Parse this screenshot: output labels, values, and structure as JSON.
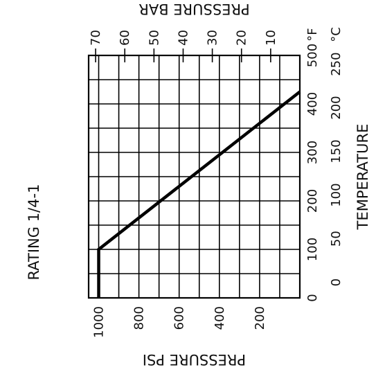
{
  "chart_data": {
    "type": "line",
    "title": "RATING 1/4-1",
    "xlabel": "TEMPERATURE",
    "ylabel": "PRESSURE PSI",
    "ylabel_secondary": "PRESSURE BAR",
    "x_unit_primary": "°F",
    "x_unit_secondary": "°C",
    "x_ticks_f": [
      "0",
      "100",
      "200",
      "300",
      "400",
      "500"
    ],
    "x_ticks_c": [
      "0",
      "50",
      "100",
      "150",
      "200",
      "250"
    ],
    "y_ticks_psi": [
      "200",
      "400",
      "600",
      "800",
      "1000"
    ],
    "y_ticks_bar": [
      "10",
      "20",
      "30",
      "40",
      "50",
      "60",
      "70"
    ],
    "xlim": [
      0,
      500
    ],
    "ylim": [
      0,
      1050
    ],
    "grid": true,
    "series": [
      {
        "x": [
          0,
          100,
          425
        ],
        "values": [
          1000,
          1000,
          0
        ]
      }
    ]
  }
}
